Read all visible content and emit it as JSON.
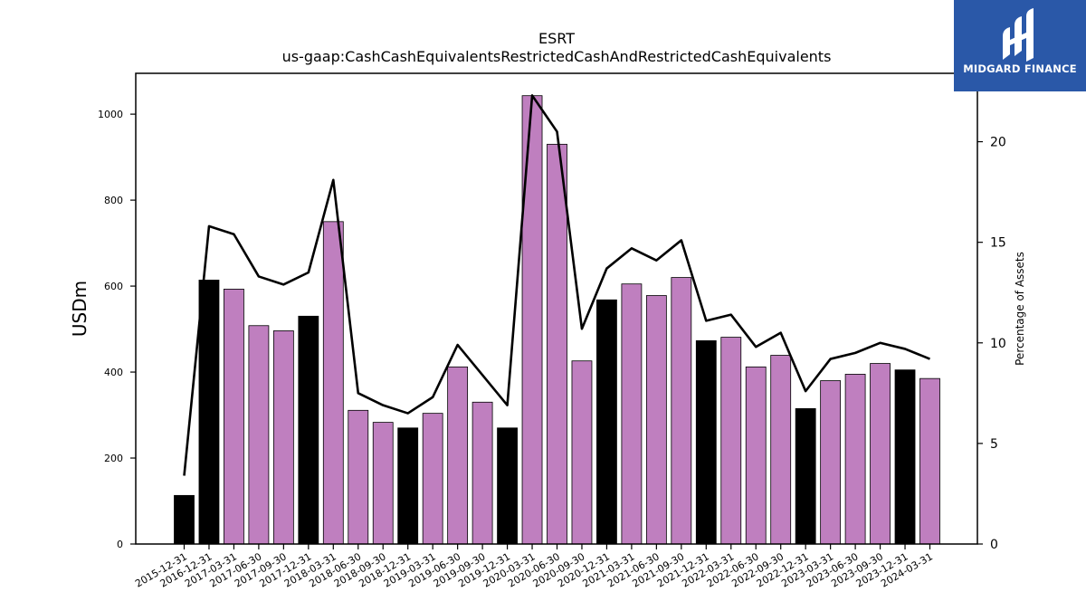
{
  "brand": {
    "name": "MIDGARD FINANCE",
    "mark_icon": "midgard-logo-icon",
    "bg_color": "#2a58a8"
  },
  "chart_data": {
    "type": "bar",
    "title": "ESRT",
    "subtitle": "us-gaap:CashCashEquivalentsRestrictedCashAndRestrictedCashEquivalents",
    "ylabel": "USDm",
    "y2label": "Percentage of Assets",
    "ylim": [
      0,
      1095
    ],
    "y2lim": [
      0,
      23.4
    ],
    "yticks": [
      0,
      200,
      400,
      600,
      800,
      1000
    ],
    "y2ticks": [
      0,
      5,
      10,
      15,
      20
    ],
    "categories": [
      "2015-12-31",
      "2016-12-31",
      "2017-03-31",
      "2017-06-30",
      "2017-09-30",
      "2017-12-31",
      "2018-03-31",
      "2018-06-30",
      "2018-09-30",
      "2018-12-31",
      "2019-03-31",
      "2019-06-30",
      "2019-09-30",
      "2019-12-31",
      "2020-03-31",
      "2020-06-30",
      "2020-09-30",
      "2020-12-31",
      "2021-03-31",
      "2021-06-30",
      "2021-09-30",
      "2021-12-31",
      "2022-03-31",
      "2022-06-30",
      "2022-09-30",
      "2022-12-31",
      "2023-03-31",
      "2023-06-30",
      "2023-09-30",
      "2023-12-31",
      "2024-03-31"
    ],
    "series": [
      {
        "type": "bar",
        "values": [
          113,
          614,
          593,
          508,
          496,
          530,
          750,
          311,
          283,
          270,
          304,
          412,
          330,
          270,
          1043,
          930,
          426,
          568,
          605,
          578,
          620,
          473,
          481,
          412,
          439,
          315,
          380,
          395,
          420,
          405,
          385
        ]
      },
      {
        "type": "line",
        "axis": "right",
        "values": [
          3.4,
          15.8,
          15.4,
          13.3,
          12.9,
          13.5,
          18.1,
          7.5,
          6.9,
          6.5,
          7.3,
          9.9,
          8.4,
          6.9,
          22.3,
          20.5,
          10.7,
          13.7,
          14.7,
          14.1,
          15.1,
          11.1,
          11.4,
          9.8,
          10.5,
          7.6,
          9.2,
          9.5,
          10.0,
          9.7,
          9.2
        ]
      }
    ],
    "bar_colors": {
      "year_end": "#000000",
      "quarter": "#bf7fbf"
    },
    "line_color": "#000000",
    "legend": "none",
    "grid": false
  }
}
